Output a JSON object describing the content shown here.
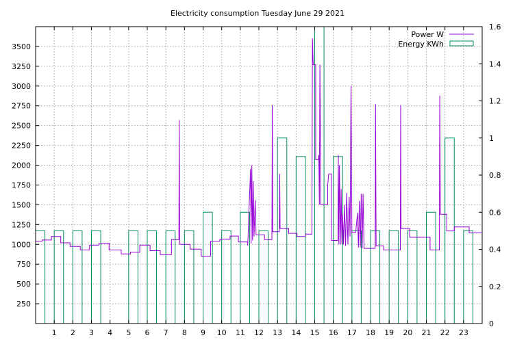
{
  "chart_data": {
    "type": "line",
    "title": "Electricity consumption Tuesday June 29 2021",
    "xlim": [
      0,
      24
    ],
    "x_ticks": [
      "1",
      "2",
      "3",
      "4",
      "5",
      "6",
      "7",
      "8",
      "9",
      "10",
      "11",
      "12",
      "13",
      "14",
      "15",
      "16",
      "17",
      "18",
      "19",
      "20",
      "21",
      "22",
      "23"
    ],
    "y_left": {
      "lim": [
        0,
        3750
      ],
      "ticks": [
        "250",
        "500",
        "750",
        "1000",
        "1250",
        "1500",
        "1750",
        "2000",
        "2250",
        "2500",
        "2750",
        "3000",
        "3250",
        "3500"
      ]
    },
    "y_right": {
      "lim": [
        0,
        1.6
      ],
      "ticks": [
        "0",
        "0.2",
        "0.4",
        "0.6",
        "0.8",
        "1",
        "1.2",
        "1.4",
        "1.6"
      ]
    },
    "grid": true,
    "legend_position": "top-right",
    "series": [
      {
        "name": "Power W",
        "axis": "left",
        "color": "#9400d3",
        "points": [
          [
            0,
            1040
          ],
          [
            0.35,
            1040
          ],
          [
            0.35,
            1055
          ],
          [
            0.85,
            1055
          ],
          [
            0.85,
            1100
          ],
          [
            1.35,
            1100
          ],
          [
            1.35,
            1020
          ],
          [
            1.85,
            1020
          ],
          [
            1.85,
            975
          ],
          [
            2.4,
            975
          ],
          [
            2.4,
            930
          ],
          [
            2.9,
            930
          ],
          [
            2.9,
            990
          ],
          [
            3.4,
            990
          ],
          [
            3.4,
            1015
          ],
          [
            3.95,
            1015
          ],
          [
            3.95,
            930
          ],
          [
            4.6,
            930
          ],
          [
            4.6,
            880
          ],
          [
            5.1,
            880
          ],
          [
            5.1,
            900
          ],
          [
            5.6,
            900
          ],
          [
            5.6,
            990
          ],
          [
            6.15,
            990
          ],
          [
            6.15,
            920
          ],
          [
            6.7,
            920
          ],
          [
            6.7,
            870
          ],
          [
            7.3,
            870
          ],
          [
            7.3,
            1060
          ],
          [
            7.7,
            1060
          ],
          [
            7.72,
            2570
          ],
          [
            7.74,
            1000
          ],
          [
            8.3,
            1000
          ],
          [
            8.3,
            940
          ],
          [
            8.9,
            940
          ],
          [
            8.9,
            850
          ],
          [
            9.4,
            850
          ],
          [
            9.4,
            1040
          ],
          [
            9.9,
            1040
          ],
          [
            9.9,
            1065
          ],
          [
            10.45,
            1065
          ],
          [
            10.45,
            1105
          ],
          [
            10.9,
            1105
          ],
          [
            10.9,
            1030
          ],
          [
            11.4,
            1030
          ],
          [
            11.4,
            985
          ],
          [
            11.55,
            1950
          ],
          [
            11.58,
            1010
          ],
          [
            11.62,
            2000
          ],
          [
            11.66,
            1050
          ],
          [
            11.7,
            1800
          ],
          [
            11.74,
            1100
          ],
          [
            11.8,
            1560
          ],
          [
            11.85,
            1120
          ],
          [
            12.3,
            1120
          ],
          [
            12.3,
            1060
          ],
          [
            12.7,
            1060
          ],
          [
            12.72,
            2760
          ],
          [
            12.74,
            1160
          ],
          [
            13.1,
            1160
          ],
          [
            13.12,
            1890
          ],
          [
            13.14,
            1200
          ],
          [
            13.6,
            1200
          ],
          [
            13.6,
            1140
          ],
          [
            14.05,
            1140
          ],
          [
            14.05,
            1100
          ],
          [
            14.5,
            1100
          ],
          [
            14.5,
            1130
          ],
          [
            14.85,
            1130
          ],
          [
            14.88,
            3600
          ],
          [
            14.92,
            3270
          ],
          [
            15.05,
            3270
          ],
          [
            15.05,
            2070
          ],
          [
            15.2,
            2070
          ],
          [
            15.22,
            2130
          ],
          [
            15.25,
            1500
          ],
          [
            15.28,
            3270
          ],
          [
            15.3,
            2440
          ],
          [
            15.33,
            1500
          ],
          [
            15.7,
            1500
          ],
          [
            15.7,
            1750
          ],
          [
            15.75,
            1890
          ],
          [
            15.9,
            1890
          ],
          [
            15.9,
            1050
          ],
          [
            16.25,
            1050
          ],
          [
            16.27,
            2130
          ],
          [
            16.3,
            1000
          ],
          [
            16.33,
            2000
          ],
          [
            16.38,
            1000
          ],
          [
            16.42,
            1700
          ],
          [
            16.46,
            1000
          ],
          [
            16.5,
            1380
          ],
          [
            16.55,
            1000
          ],
          [
            16.6,
            1500
          ],
          [
            16.66,
            980
          ],
          [
            16.72,
            1650
          ],
          [
            16.78,
            1000
          ],
          [
            16.85,
            1600
          ],
          [
            16.9,
            1100
          ],
          [
            16.95,
            3000
          ],
          [
            17.0,
            1150
          ],
          [
            17.2,
            1150
          ],
          [
            17.3,
            1400
          ],
          [
            17.35,
            960
          ],
          [
            17.4,
            1550
          ],
          [
            17.45,
            960
          ],
          [
            17.5,
            1640
          ],
          [
            17.55,
            950
          ],
          [
            17.6,
            1640
          ],
          [
            17.65,
            950
          ],
          [
            18.25,
            950
          ],
          [
            18.27,
            2770
          ],
          [
            18.3,
            980
          ],
          [
            18.7,
            980
          ],
          [
            18.7,
            930
          ],
          [
            19.6,
            930
          ],
          [
            19.62,
            2760
          ],
          [
            19.64,
            1200
          ],
          [
            20.1,
            1200
          ],
          [
            20.1,
            1090
          ],
          [
            21.2,
            1090
          ],
          [
            21.2,
            930
          ],
          [
            21.7,
            930
          ],
          [
            21.72,
            2880
          ],
          [
            21.75,
            1380
          ],
          [
            22.1,
            1380
          ],
          [
            22.1,
            1170
          ],
          [
            22.5,
            1170
          ],
          [
            22.5,
            1220
          ],
          [
            23.3,
            1220
          ],
          [
            23.3,
            1145
          ],
          [
            24,
            1145
          ]
        ]
      },
      {
        "name": "Energy KWh",
        "axis": "right",
        "color": "#008b5e",
        "bars": [
          [
            0,
            0.5
          ],
          [
            1,
            0.5
          ],
          [
            2,
            0.5
          ],
          [
            3,
            0.5
          ],
          [
            4,
            0
          ],
          [
            5,
            0.5
          ],
          [
            6,
            0.5
          ],
          [
            7,
            0.5
          ],
          [
            8,
            0.5
          ],
          [
            9,
            0.6
          ],
          [
            10,
            0.5
          ],
          [
            11,
            0.6
          ],
          [
            12,
            0.5
          ],
          [
            13,
            1.0
          ],
          [
            14,
            0.9
          ],
          [
            15,
            1.6
          ],
          [
            16,
            0.9
          ],
          [
            17,
            0.5
          ],
          [
            18,
            0.5
          ],
          [
            19,
            0.5
          ],
          [
            20,
            0.5
          ],
          [
            21,
            0.6
          ],
          [
            22,
            1.0
          ],
          [
            23,
            0.5
          ]
        ]
      }
    ]
  }
}
